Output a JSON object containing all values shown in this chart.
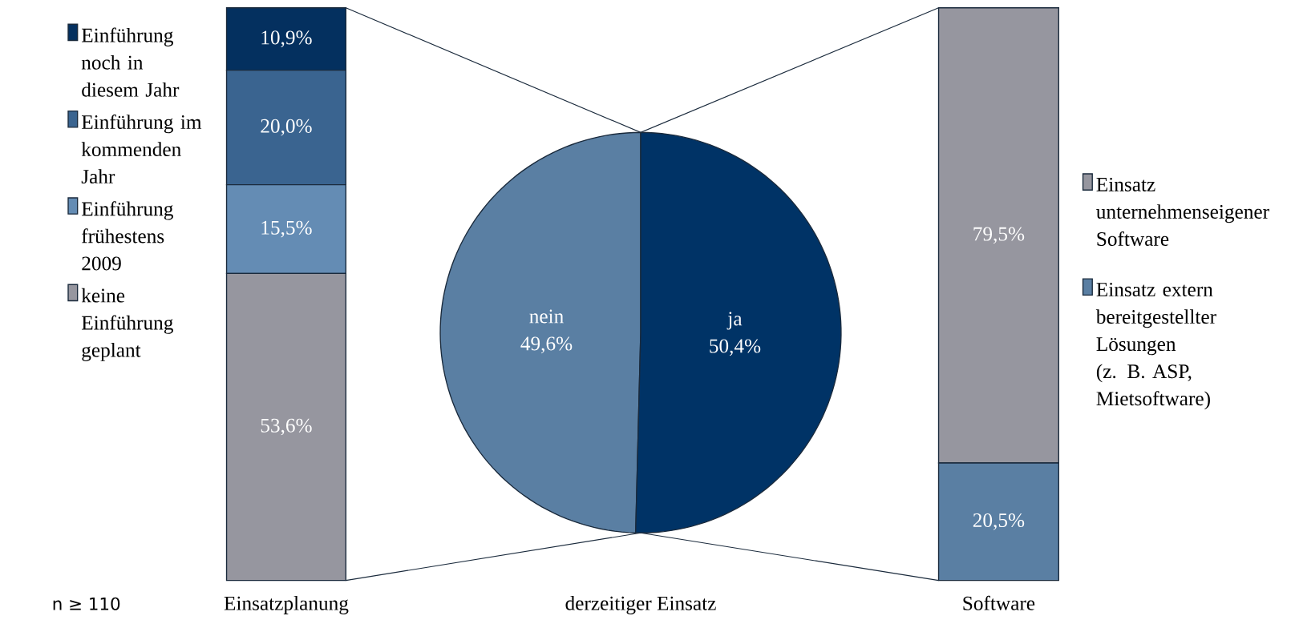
{
  "chart_data": [
    {
      "type": "bar",
      "stacked": true,
      "categories": [
        null
      ],
      "xlabel": "Einsatzplanung",
      "legend": "left",
      "annotations": [
        "n ≥ 110"
      ],
      "series": [
        {
          "name": "keine Einführung geplant",
          "color": "#96969f",
          "values": [
            53.6
          ],
          "value_labels": [
            "53,6%"
          ]
        },
        {
          "name": "Einführung frühestens 2009",
          "color": "#648cb4",
          "values": [
            15.5
          ],
          "value_labels": [
            "15,5%"
          ]
        },
        {
          "name": "Einführung im kommenden Jahr",
          "color": "#3a6490",
          "values": [
            20.0
          ],
          "value_labels": [
            "20,0%"
          ]
        },
        {
          "name": "Einführung noch in diesem Jahr",
          "color": "#04305f",
          "values": [
            10.9
          ],
          "value_labels": [
            "10,9%"
          ]
        }
      ]
    },
    {
      "type": "pie",
      "categories": [
        "nein",
        "ja"
      ],
      "values": [
        49.6,
        50.4
      ],
      "colors": [
        "#5a7fa3",
        "#003366"
      ],
      "value_labels": [
        "49,6%",
        "50,4%"
      ],
      "xlabel": "derzeitiger Einsatz"
    },
    {
      "type": "bar",
      "stacked": true,
      "categories": [
        null
      ],
      "xlabel": "Software",
      "legend": "right",
      "series": [
        {
          "name": "Einsatz extern bereitgestellter Lösungen (z. B. ASP, Mietsoftware)",
          "color": "#5a7fa3",
          "values": [
            20.5
          ],
          "value_labels": [
            "20,5%"
          ]
        },
        {
          "name": "Einsatz unternehmenseigener Software",
          "color": "#96969f",
          "values": [
            79.5
          ],
          "value_labels": [
            "79,5%"
          ]
        }
      ]
    }
  ]
}
